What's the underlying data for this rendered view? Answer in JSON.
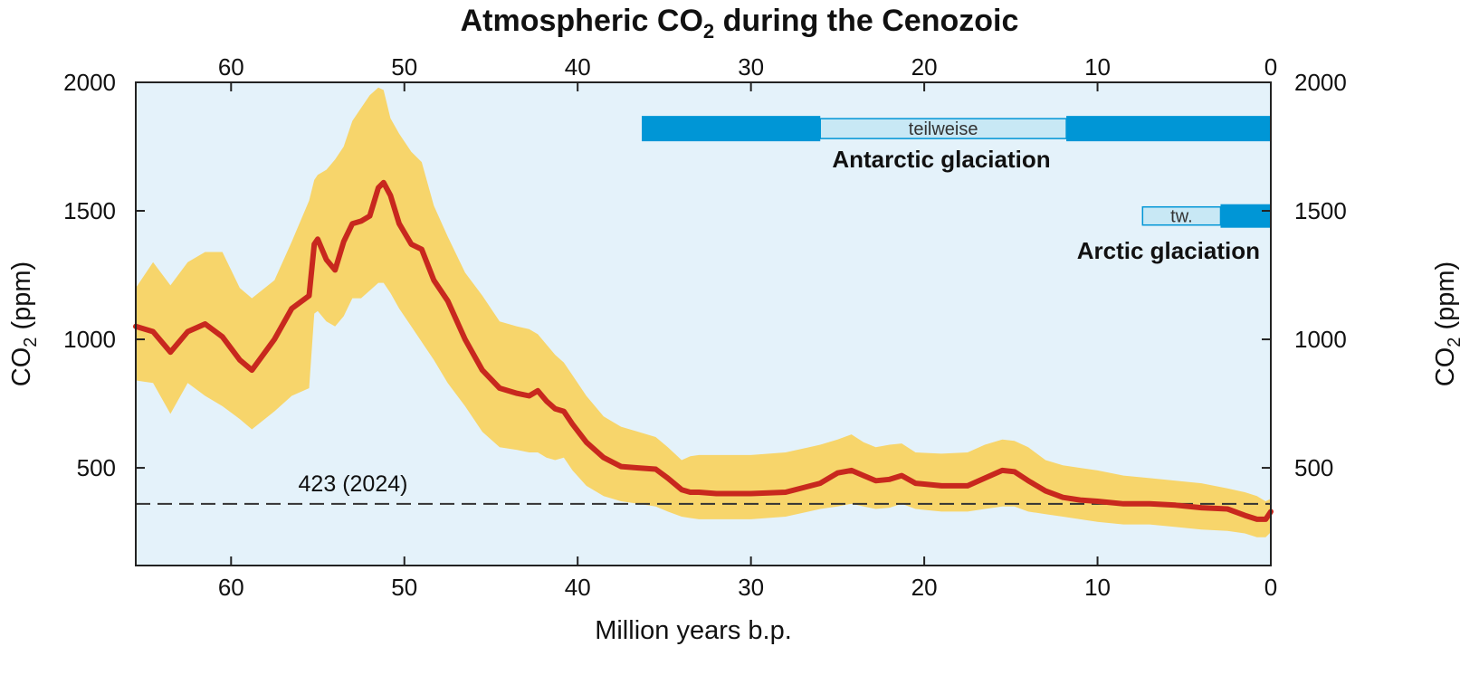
{
  "chart_data": {
    "type": "area",
    "title": {
      "prefix": "Atmospheric CO",
      "sub": "2",
      "suffix": " during the Cenozoic"
    },
    "xlabel": "Million years b.p.",
    "ylabel": {
      "prefix": "CO",
      "sub": "2",
      "suffix": " (ppm)"
    },
    "xlim": [
      65.5,
      0
    ],
    "ylim": [
      120,
      2000
    ],
    "x_ticks": [
      60,
      50,
      40,
      30,
      20,
      10,
      0
    ],
    "y_ticks": [
      500,
      1000,
      1500,
      2000
    ],
    "colors": {
      "background": "#e4f2fa",
      "band": "#f7d56b",
      "line": "#c8281e",
      "glaciation_full": "#0096d6",
      "glaciation_partial": "#c8e8f5"
    },
    "series": [
      {
        "x": [
          65.5,
          64.5,
          63.5,
          62.5,
          61.5,
          60.5,
          59.5,
          58.8,
          57.5,
          56.5,
          55.5,
          55.2,
          55.0,
          54.5,
          54.0,
          53.5,
          53.0,
          52.5,
          52.0,
          51.5,
          51.2,
          50.8,
          50.3,
          49.6,
          49.0,
          48.3,
          47.5,
          46.5,
          45.5,
          44.5,
          43.5,
          42.8,
          42.3,
          41.8,
          41.3,
          40.8,
          40.3,
          39.5,
          38.5,
          37.5,
          36.5,
          35.5,
          34.8,
          34.0,
          33.5,
          33.0,
          32.0,
          30.0,
          28.0,
          26.0,
          25.0,
          24.2,
          23.5,
          22.8,
          22.0,
          21.3,
          20.5,
          19.0,
          17.5,
          16.5,
          15.5,
          14.8,
          14.0,
          13.0,
          12.0,
          11.0,
          10.0,
          8.5,
          7.0,
          5.5,
          4.0,
          2.5,
          1.5,
          0.8,
          0.3,
          0.0
        ],
        "values": [
          1050,
          1030,
          950,
          1030,
          1060,
          1010,
          920,
          880,
          1000,
          1120,
          1170,
          1370,
          1390,
          1310,
          1270,
          1380,
          1450,
          1460,
          1480,
          1590,
          1610,
          1560,
          1450,
          1370,
          1350,
          1230,
          1150,
          1000,
          880,
          810,
          790,
          780,
          800,
          760,
          730,
          720,
          670,
          600,
          540,
          505,
          500,
          495,
          460,
          415,
          405,
          405,
          400,
          400,
          405,
          440,
          480,
          490,
          470,
          450,
          455,
          470,
          440,
          430,
          430,
          460,
          490,
          485,
          450,
          410,
          385,
          375,
          370,
          360,
          360,
          355,
          345,
          340,
          315,
          300,
          300,
          330
        ],
        "lower": [
          840,
          830,
          710,
          830,
          780,
          740,
          690,
          650,
          720,
          780,
          810,
          1100,
          1110,
          1070,
          1050,
          1090,
          1160,
          1160,
          1190,
          1220,
          1220,
          1180,
          1120,
          1050,
          990,
          920,
          830,
          740,
          640,
          580,
          570,
          560,
          560,
          540,
          530,
          540,
          490,
          430,
          390,
          370,
          360,
          350,
          330,
          310,
          305,
          300,
          300,
          300,
          310,
          340,
          350,
          360,
          350,
          340,
          345,
          360,
          340,
          330,
          330,
          340,
          350,
          350,
          330,
          320,
          310,
          300,
          290,
          280,
          280,
          270,
          260,
          255,
          245,
          230,
          230,
          250
        ],
        "upper": [
          1200,
          1300,
          1210,
          1300,
          1340,
          1340,
          1200,
          1160,
          1230,
          1380,
          1540,
          1620,
          1640,
          1660,
          1700,
          1750,
          1850,
          1900,
          1950,
          1980,
          1970,
          1860,
          1800,
          1730,
          1690,
          1520,
          1400,
          1260,
          1170,
          1070,
          1050,
          1040,
          1020,
          980,
          940,
          910,
          860,
          780,
          700,
          660,
          640,
          620,
          580,
          530,
          545,
          550,
          550,
          550,
          560,
          590,
          610,
          630,
          600,
          580,
          590,
          595,
          560,
          555,
          560,
          590,
          610,
          605,
          580,
          530,
          510,
          500,
          490,
          470,
          460,
          450,
          440,
          420,
          405,
          390,
          370,
          380
        ]
      }
    ],
    "reference_line": {
      "value": 360,
      "label": "423 (2024)"
    },
    "glaciations": [
      {
        "label": "Antarctic glaciation",
        "y_center": 1820,
        "full_segments": [
          [
            36.3,
            26.0
          ],
          [
            11.8,
            0.0
          ]
        ],
        "partial_segment": [
          26.0,
          11.8
        ],
        "partial_label": "teilweise"
      },
      {
        "label": "Arctic glaciation",
        "y_center": 1480,
        "full_segments": [
          [
            2.9,
            0.0
          ]
        ],
        "partial_segment": [
          7.4,
          2.9
        ],
        "partial_label": "tw."
      }
    ]
  }
}
